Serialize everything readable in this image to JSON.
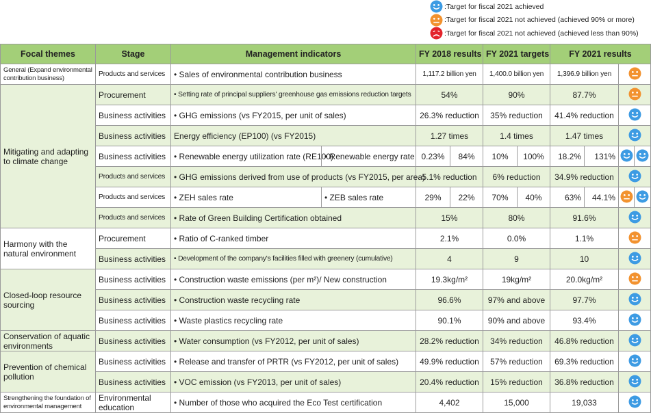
{
  "legend": [
    "Target for fiscal 2021 achieved",
    "Target for fiscal 2021 not achieved (achieved 90% or more)",
    "Target for fiscal 2021 not achieved (achieved less than 90%)"
  ],
  "table": {
    "header": [
      "Focal themes",
      "Stage",
      "Management indicators",
      "FY 2018 results",
      "FY 2021 targets",
      "FY 2021 results"
    ],
    "groups": [
      {
        "theme": "General (Expand environmental contribution business)",
        "rows": [
          {
            "stage": "Products and services",
            "indicator": [
              "• Sales of environmental contribution business"
            ],
            "fy2018": [
              "1,117.2 billion yen"
            ],
            "targets": [
              "1,400.0 billion yen"
            ],
            "results": [
              "1,396.9 billion yen"
            ]
          }
        ]
      },
      {
        "theme": "Mitigating and adapting to climate change",
        "rows": [
          {
            "stage": "Procurement",
            "indicator": [
              "• Setting rate of principal suppliers' greenhouse gas emissions reduction targets"
            ],
            "fy2018": [
              "54%"
            ],
            "targets": [
              "90%"
            ],
            "results": [
              "87.7%"
            ]
          },
          {
            "stage": "Business activities",
            "indicator": [
              "• GHG emissions (vs FY2015, per unit of sales)"
            ],
            "fy2018": [
              "26.3% reduction"
            ],
            "targets": [
              "35% reduction"
            ],
            "results": [
              "41.4% reduction"
            ]
          },
          {
            "stage": "Business activities",
            "indicator": [
              "Energy efficiency (EP100) (vs FY2015)"
            ],
            "fy2018": [
              "1.27 times"
            ],
            "targets": [
              "1.4 times"
            ],
            "results": [
              "1.47 times"
            ]
          },
          {
            "stage": "Business activities",
            "indicator": [
              "• Renewable energy utilization rate (RE100)",
              "• Renewable energy rate"
            ],
            "fy2018": [
              "0.23%",
              "84%"
            ],
            "targets": [
              "10%",
              "100%"
            ],
            "results": [
              "18.2%",
              "131%"
            ]
          },
          {
            "stage": "Products and services",
            "indicator": [
              "• GHG emissions derived from use of products (vs FY2015, per area)"
            ],
            "fy2018": [
              "5.1% reduction"
            ],
            "targets": [
              "6% reduction"
            ],
            "results": [
              "34.9% reduction"
            ]
          },
          {
            "stage": "Products and services",
            "indicator": [
              "• ZEH sales rate",
              "• ZEB sales rate"
            ],
            "fy2018": [
              "29%",
              "22%"
            ],
            "targets": [
              "70%",
              "40%"
            ],
            "results": [
              "63%",
              "44.1%"
            ]
          },
          {
            "stage": "Products and services",
            "indicator": [
              "• Rate of Green Building Certification obtained"
            ],
            "fy2018": [
              "15%"
            ],
            "targets": [
              "80%"
            ],
            "results": [
              "91.6%"
            ]
          }
        ]
      },
      {
        "theme": "Harmony with the natural environment",
        "rows": [
          {
            "stage": "Procurement",
            "indicator": [
              "• Ratio of C-ranked timber"
            ],
            "fy2018": [
              "2.1%"
            ],
            "targets": [
              "0.0%"
            ],
            "results": [
              "1.1%"
            ]
          },
          {
            "stage": "Business activities",
            "indicator": [
              "• Development of the company's facilities filled with greenery (cumulative)"
            ],
            "fy2018": [
              "4"
            ],
            "targets": [
              "9"
            ],
            "results": [
              "10"
            ]
          }
        ]
      },
      {
        "theme": "Closed-loop resource sourcing",
        "rows": [
          {
            "stage": "Business activities",
            "indicator": [
              "• Construction waste emissions (per m²)/ New construction"
            ],
            "fy2018": [
              "19.3kg/m²"
            ],
            "targets": [
              "19kg/m²"
            ],
            "results": [
              "20.0kg/m²"
            ]
          },
          {
            "stage": "Business activities",
            "indicator": [
              "• Construction waste recycling rate"
            ],
            "fy2018": [
              "96.6%"
            ],
            "targets": [
              "97% and above"
            ],
            "results": [
              "97.7%"
            ]
          },
          {
            "stage": "Business activities",
            "indicator": [
              "• Waste plastics recycling rate"
            ],
            "fy2018": [
              "90.1%"
            ],
            "targets": [
              "90% and above"
            ],
            "results": [
              "93.4%"
            ]
          }
        ]
      },
      {
        "theme": "Conservation of aquatic environments",
        "rows": [
          {
            "stage": "Business activities",
            "indicator": [
              "• Water consumption (vs FY2012, per unit of sales)"
            ],
            "fy2018": [
              "28.2% reduction"
            ],
            "targets": [
              "34% reduction"
            ],
            "results": [
              "46.8% reduction"
            ]
          }
        ]
      },
      {
        "theme": "Prevention of chemical pollution",
        "rows": [
          {
            "stage": "Business activities",
            "indicator": [
              "• Release and transfer of PRTR (vs FY2012, per unit of sales)"
            ],
            "fy2018": [
              "49.9% reduction"
            ],
            "targets": [
              "57% reduction"
            ],
            "results": [
              "69.3% reduction"
            ]
          },
          {
            "stage": "Business activities",
            "indicator": [
              "• VOC emission (vs FY2013, per unit of sales)"
            ],
            "fy2018": [
              "20.4% reduction"
            ],
            "targets": [
              "15% reduction"
            ],
            "results": [
              "36.8% reduction"
            ]
          }
        ]
      },
      {
        "theme": "Strengthening the foundation of environmental management",
        "rows": [
          {
            "stage": "Environmental education",
            "indicator": [
              "• Number of those who acquired the Eco Test certification"
            ],
            "fy2018": [
              "4,402"
            ],
            "targets": [
              "15,000"
            ],
            "results": [
              "19,033"
            ]
          }
        ]
      }
    ]
  }
}
